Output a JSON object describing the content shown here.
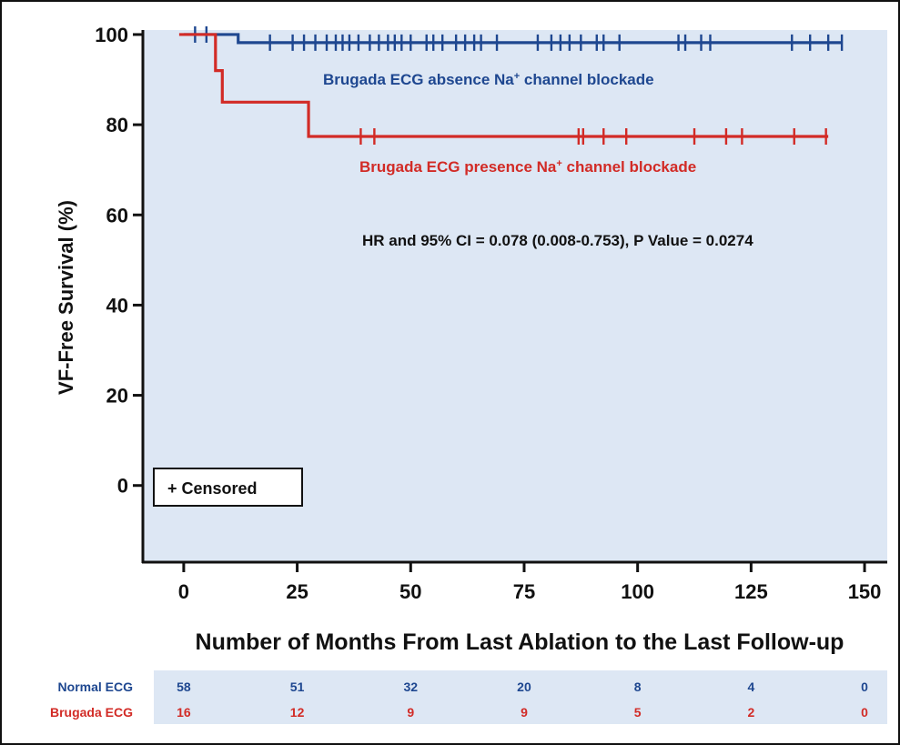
{
  "colors": {
    "plot_bg": "#dde7f4",
    "risk_bg": "#dde7f4",
    "normal": "#1e4790",
    "brugada": "#d22b26",
    "axis": "#111111"
  },
  "chart_data": {
    "type": "line",
    "subtype": "kaplan-meier",
    "title": "",
    "xlabel": "Number of Months From Last Ablation to the Last Follow-up",
    "ylabel": "VF-Free Survival (%)",
    "xlim": [
      -9,
      155
    ],
    "ylim": [
      -17,
      101
    ],
    "x_ticks": [
      0,
      25,
      50,
      75,
      100,
      125,
      150
    ],
    "x_tick_labels": [
      "0",
      "25",
      "50",
      "75",
      "100",
      "125",
      "150"
    ],
    "y_ticks": [
      0,
      20,
      40,
      60,
      80,
      100
    ],
    "y_tick_labels": [
      "0",
      "20",
      "40",
      "60",
      "80",
      "100"
    ],
    "grid": false,
    "series": [
      {
        "name": "Brugada ECG absence Na+ channel blockade",
        "label_main": "Brugada ECG absence Na",
        "label_sup": "+",
        "label_tail": " channel blockade",
        "color": "#1e4790",
        "steps": [
          [
            0,
            100
          ],
          [
            12,
            98.2
          ],
          [
            145,
            98.2
          ]
        ],
        "censored": [
          2.5,
          5,
          19,
          24,
          26.5,
          29,
          31.5,
          33.5,
          35,
          36.5,
          38.5,
          41,
          43,
          45,
          46.5,
          48,
          50,
          53.5,
          55,
          57,
          60,
          62,
          64,
          65.5,
          69,
          78,
          81,
          83,
          85,
          87.5,
          91,
          92.5,
          96,
          109,
          110.5,
          114,
          116,
          134,
          138,
          142,
          145
        ]
      },
      {
        "name": "Brugada ECG presence Na+ channel blockade",
        "label_main": "Brugada ECG presence Na",
        "label_sup": "+",
        "label_tail": " channel blockade",
        "color": "#d22b26",
        "steps": [
          [
            -1,
            100
          ],
          [
            7,
            92
          ],
          [
            8.5,
            85
          ],
          [
            27.5,
            77.4
          ],
          [
            142,
            77.4
          ]
        ],
        "censored": [
          39,
          42,
          87,
          88,
          92.5,
          97.5,
          112.5,
          119.5,
          123,
          134.5,
          141.5
        ]
      }
    ],
    "annotations": [
      "HR and 95% CI = 0.078 (0.008-0.753), P Value = 0.0274"
    ],
    "legend": {
      "placement": "bottom-left",
      "entries": [
        "+ Censored"
      ]
    }
  },
  "risk_table": {
    "rows": [
      {
        "label": "Normal ECG",
        "color": "#1e4790",
        "values": [
          "58",
          "51",
          "32",
          "20",
          "8",
          "4",
          "0"
        ]
      },
      {
        "label": "Brugada ECG",
        "color": "#d22b26",
        "values": [
          "16",
          "12",
          "9",
          "9",
          "5",
          "2",
          "0"
        ]
      }
    ]
  }
}
